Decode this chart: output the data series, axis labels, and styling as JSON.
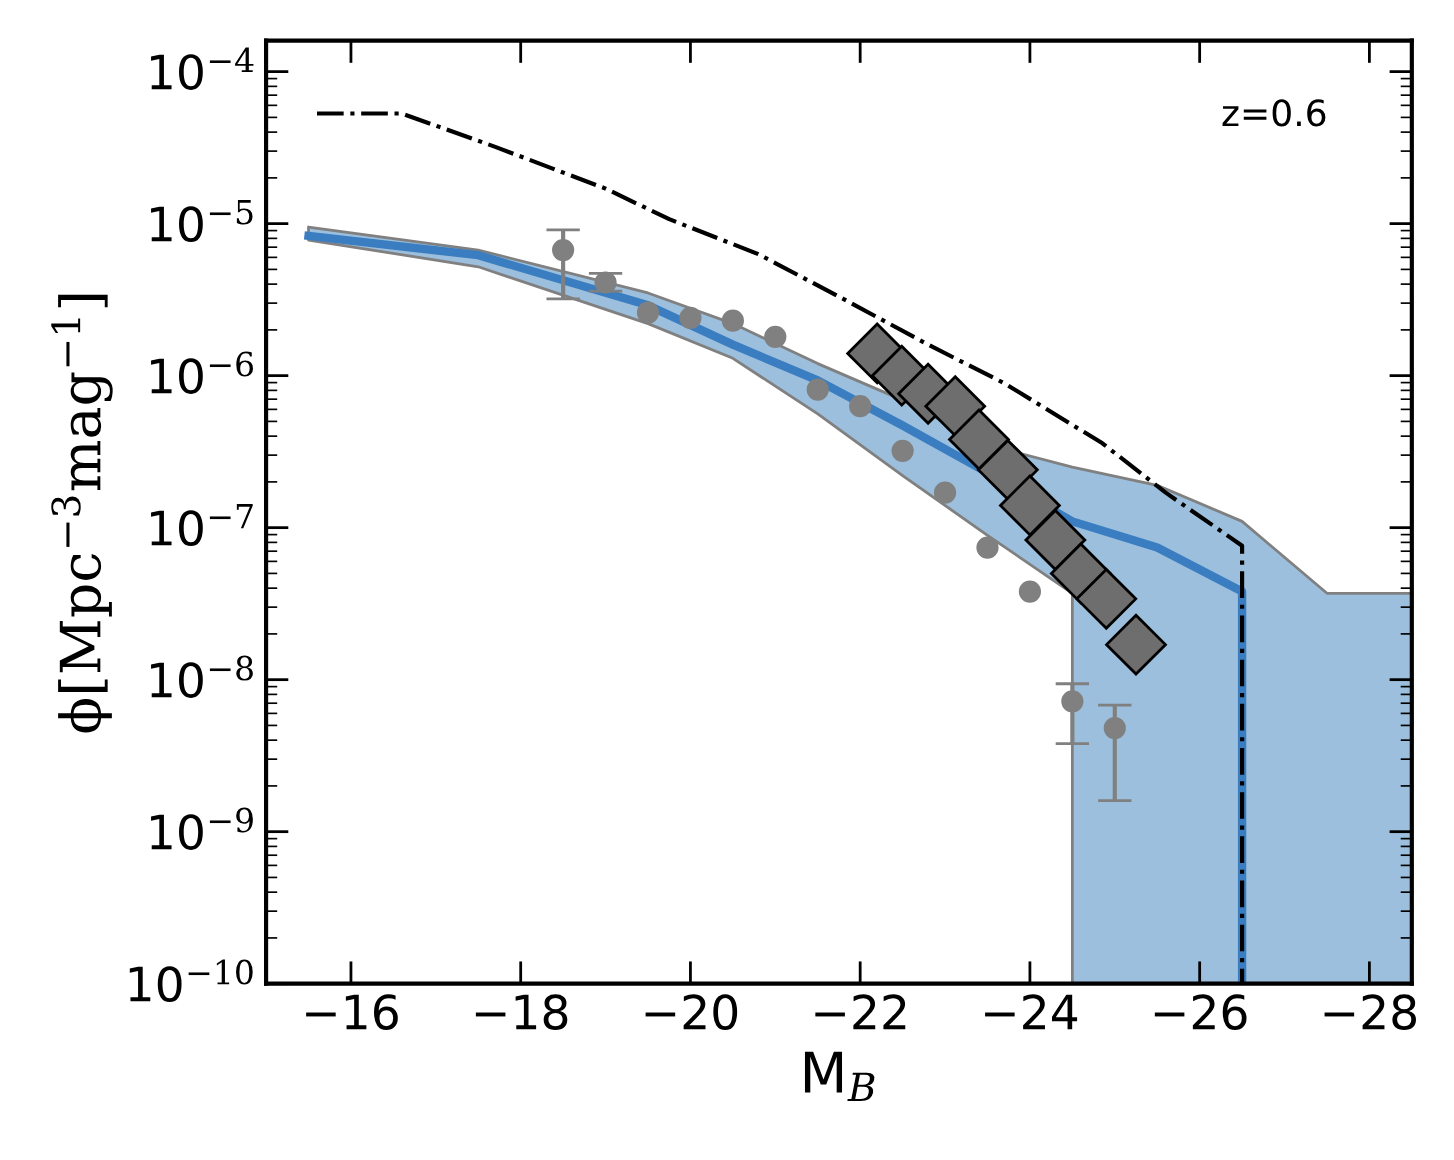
{
  "chart_data": {
    "type": "line",
    "xlabel": "M$_{B}$",
    "ylabel": "ϕ[Mpc$^{−3}$mag$^{−1}$]",
    "log": "y",
    "xlim": [
      -15,
      -28.5
    ],
    "xticks": [
      {
        "value": -16,
        "label": "−16"
      },
      {
        "value": -18,
        "label": "−18"
      },
      {
        "value": -20,
        "label": "−20"
      },
      {
        "value": -22,
        "label": "−22"
      },
      {
        "value": -24,
        "label": "−24"
      },
      {
        "value": -26,
        "label": "−26"
      },
      {
        "value": -28,
        "label": "−28"
      }
    ],
    "ylim": [
      1e-10,
      0.00016
    ],
    "yticks": [
      {
        "value": 1e-10,
        "label": "10$^{−10}$"
      },
      {
        "value": 1e-09,
        "label": "10$^{−9}$"
      },
      {
        "value": 1e-08,
        "label": "10$^{−8}$"
      },
      {
        "value": 1e-07,
        "label": "10$^{−7}$"
      },
      {
        "value": 1e-06,
        "label": "10$^{−6}$"
      },
      {
        "value": 1e-05,
        "label": "10$^{−5}$"
      },
      {
        "value": 0.0001,
        "label": "10$^{−4}$"
      }
    ],
    "grid": false,
    "legend": false,
    "annotations": [
      "z=0.6"
    ],
    "series": [
      {
        "color": "#3a7dc0",
        "line_style": "solid",
        "x": [
          -15.5,
          -17.5,
          -19.5,
          -20.5,
          -21.5,
          -22.5,
          -23.5,
          -24.5,
          -24.5,
          -25.5,
          -26.5,
          -26.5,
          -27.5,
          -28.5
        ],
        "values": [
          8.3e-06,
          6.2e-06,
          2.9e-06,
          1.6e-06,
          9.3e-07,
          4.7e-07,
          2.3e-07,
          1.1e-07,
          1.1e-07,
          7.4e-08,
          3.8e-08,
          1e-10,
          null,
          null
        ],
        "upper": [
          9.5e-06,
          6.7e-06,
          3.5e-06,
          2.2e-06,
          1.2e-06,
          6.9e-07,
          3.5e-07,
          2.5e-07,
          2.5e-07,
          1.9e-07,
          1.1e-07,
          1.1e-07,
          3.7e-08,
          3.7e-08
        ],
        "lower": [
          7.8e-06,
          5.2e-06,
          2.2e-06,
          1.3e-06,
          5.6e-07,
          2.2e-07,
          8.9e-08,
          3.7e-08,
          1e-10,
          1e-10,
          1e-10,
          1e-10,
          1e-10,
          1e-10
        ]
      },
      {
        "color": "#000000",
        "line_style": "dashdot",
        "x": [
          -15.6,
          -16.6,
          -17.7,
          -19.0,
          -19.75,
          -20.8,
          -21.8,
          -22.8,
          -23.7,
          -24.85,
          -25.6,
          -26.5,
          -26.5
        ],
        "values": [
          5.3e-05,
          5.3e-05,
          3.2e-05,
          1.7e-05,
          1.07e-05,
          6.3e-06,
          3.2e-06,
          1.6e-06,
          8.9e-07,
          3.6e-07,
          1.7e-07,
          7.6e-08,
          1e-10
        ]
      },
      {
        "type": "scatter",
        "color": "#808080",
        "marker": "circle",
        "x": [
          -18.5,
          -19.0,
          -19.5,
          -20.0,
          -20.5,
          -21.0,
          -21.5,
          -22.0,
          -22.5,
          -23.0,
          -23.5,
          -24.0,
          -24.5,
          -25.0
        ],
        "values": [
          6.7e-06,
          4.1e-06,
          2.6e-06,
          2.4e-06,
          2.3e-06,
          1.8e-06,
          8.1e-07,
          6.3e-07,
          3.2e-07,
          1.7e-07,
          7.4e-08,
          3.8e-08,
          7.2e-09,
          4.8e-09
        ],
        "errors": [
          [
            3.2e-06,
            9.1e-06
          ],
          [
            3.6e-06,
            4.7e-06
          ],
          null,
          null,
          null,
          null,
          null,
          null,
          null,
          null,
          null,
          null,
          [
            3.8e-09,
            9.4e-09
          ],
          [
            1.6e-09,
            6.8e-09
          ]
        ]
      },
      {
        "type": "scatter",
        "color": "#6e6e6e",
        "marker": "diamond",
        "x": [
          -22.2,
          -22.49,
          -22.8,
          -23.12,
          -23.4,
          -23.74,
          -24.0,
          -24.3,
          -24.6,
          -24.9,
          -25.25
        ],
        "values": [
          1.4e-06,
          1e-06,
          7.6e-07,
          6.3e-07,
          3.8e-07,
          2.4e-07,
          1.4e-07,
          8.3e-08,
          5e-08,
          3.4e-08,
          1.7e-08
        ]
      }
    ]
  }
}
